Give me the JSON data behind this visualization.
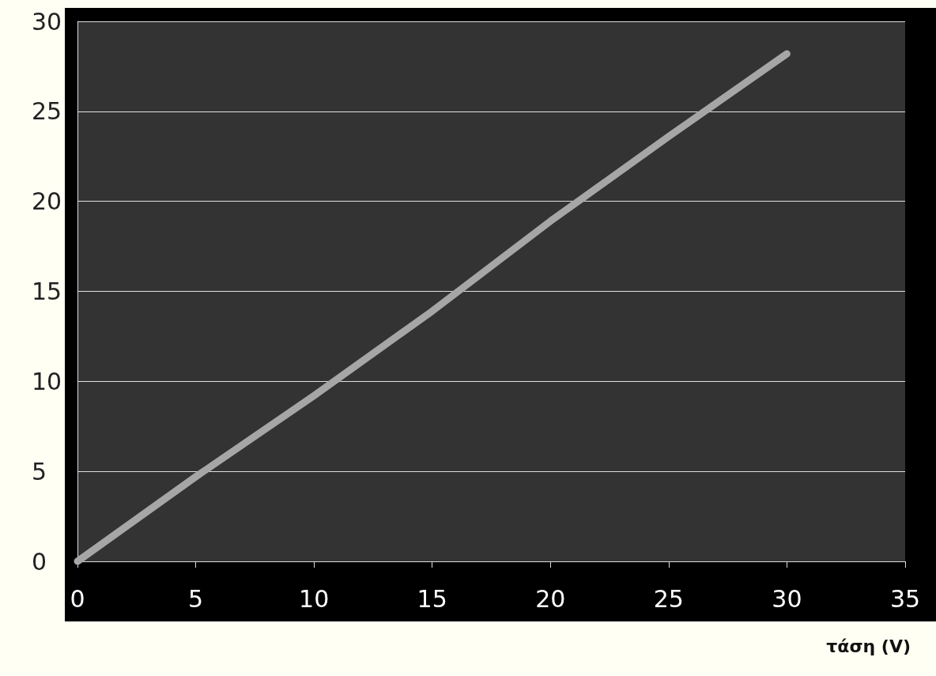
{
  "chart_data": {
    "type": "line",
    "xlabel": "τάση (V)",
    "x": [
      0,
      5,
      10,
      15,
      20,
      25,
      30
    ],
    "series": [
      {
        "color": "#a6a6a6",
        "values": [
          0,
          4.7,
          9.2,
          13.9,
          18.9,
          23.6,
          28.2
        ]
      }
    ],
    "xlim": [
      0,
      35
    ],
    "xticks": [
      0,
      5,
      10,
      15,
      20,
      25,
      30,
      35
    ],
    "ylim": [
      0,
      30
    ],
    "yticks": [
      0,
      5,
      10,
      15,
      20,
      25,
      30
    ],
    "grid": "y",
    "line_style": "solid"
  }
}
